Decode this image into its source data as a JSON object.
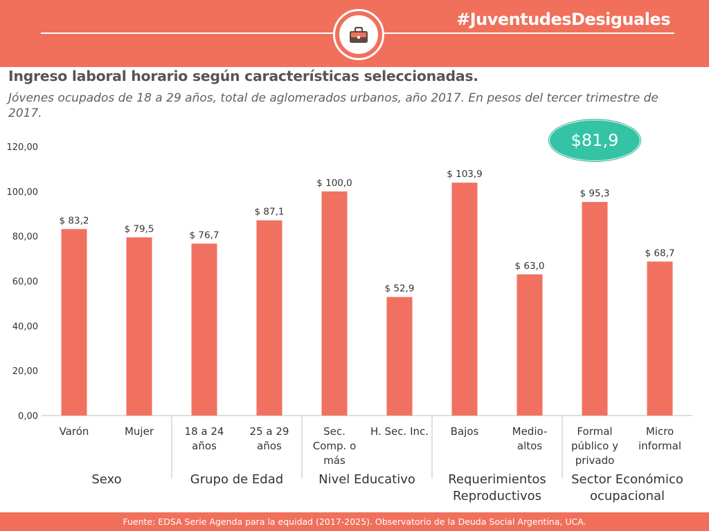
{
  "header": {
    "hashtag": "#JuventudesDesiguales",
    "logo_icon": "briefcase-icon",
    "band_color": "#f0705b"
  },
  "title": "Ingreso laboral horario según características seleccionadas.",
  "subtitle": "Jóvenes ocupados de 18 a 29 años, total de aglomerados urbanos, año 2017. En pesos del tercer trimestre de 2017.",
  "badge": {
    "text": "$81,9",
    "color": "#34c4a5"
  },
  "footer": {
    "text": "Fuente: EDSA Serie Agenda para la equidad (2017-2025). Observatorio de la Deuda Social Argentina, UCA."
  },
  "chart_data": {
    "type": "bar",
    "bar_color": "#f0715f",
    "ylim": [
      0,
      120
    ],
    "yticks": [
      "0,00",
      "20,00",
      "40,00",
      "60,00",
      "80,00",
      "100,00",
      "120,00"
    ],
    "categories": [
      [
        "Varón"
      ],
      [
        "Mujer"
      ],
      [
        "18 a 24",
        "años"
      ],
      [
        "25 a 29",
        "años"
      ],
      [
        "Sec.",
        "Comp. o",
        "más"
      ],
      [
        "H. Sec. Inc."
      ],
      [
        "Bajos"
      ],
      [
        "Medio-",
        "altos"
      ],
      [
        "Formal",
        "público y",
        "privado"
      ],
      [
        "Micro",
        "informal"
      ]
    ],
    "values": [
      83.2,
      79.5,
      76.7,
      87.1,
      100.0,
      52.9,
      103.9,
      63.0,
      95.3,
      68.7
    ],
    "value_labels": [
      "$ 83,2",
      "$ 79,5",
      "$ 76,7",
      "$ 87,1",
      "$ 100,0",
      "$ 52,9",
      "$ 103,9",
      "$ 63,0",
      "$ 95,3",
      "$ 68,7"
    ],
    "groups": [
      {
        "label": [
          "Sexo"
        ],
        "span": [
          0,
          1
        ]
      },
      {
        "label": [
          "Grupo de Edad"
        ],
        "span": [
          2,
          3
        ]
      },
      {
        "label": [
          "Nivel Educativo"
        ],
        "span": [
          4,
          5
        ]
      },
      {
        "label": [
          "Requerimientos",
          "Reproductivos"
        ],
        "span": [
          6,
          7
        ]
      },
      {
        "label": [
          "Sector Económico",
          "ocupacional"
        ],
        "span": [
          8,
          9
        ]
      }
    ],
    "grid": false
  }
}
